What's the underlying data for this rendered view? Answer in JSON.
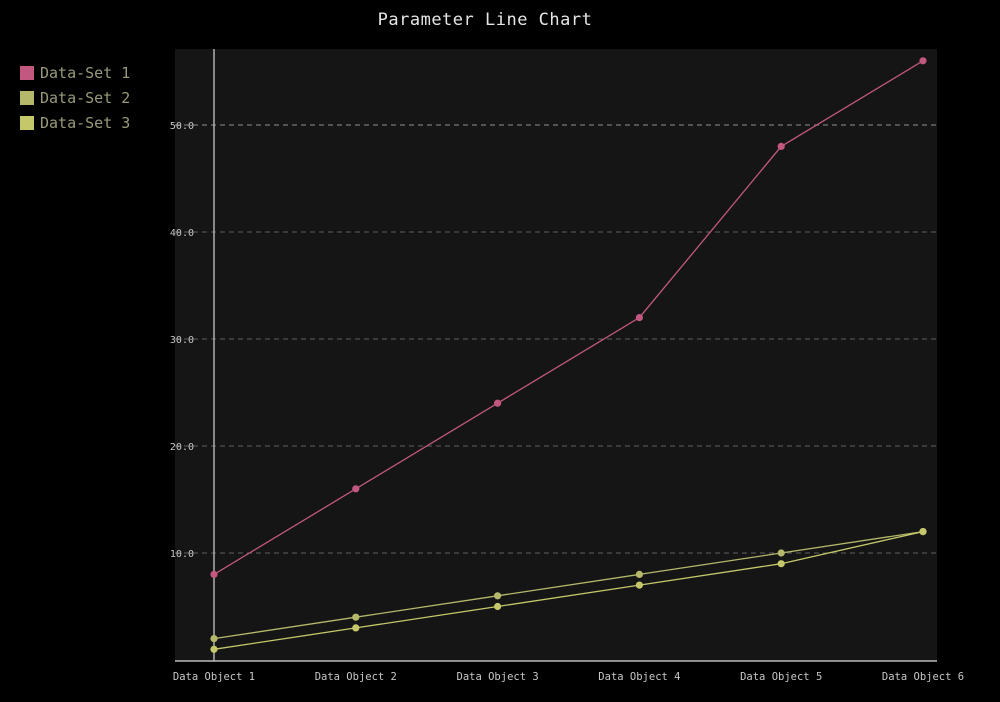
{
  "chart_data": {
    "type": "line",
    "title": "Parameter Line Chart",
    "xlabel": "",
    "ylabel": "",
    "categories": [
      "Data Object 1",
      "Data Object 2",
      "Data Object 3",
      "Data Object 4",
      "Data Object 5",
      "Data Object 6"
    ],
    "ylim": [
      0,
      57
    ],
    "yticks": [
      10,
      20,
      30,
      40,
      50
    ],
    "ytick_labels": [
      "10.0",
      "20.0",
      "30.0",
      "40.0",
      "50.0"
    ],
    "grid": "horizontal-dashed",
    "legend_position": "top-left",
    "series": [
      {
        "name": "Data-Set 1",
        "color": "#c2587f",
        "values": [
          8,
          16,
          24,
          32,
          48,
          56
        ]
      },
      {
        "name": "Data-Set 2",
        "color": "#b5b86a",
        "values": [
          2,
          4,
          6,
          8,
          10,
          12
        ]
      },
      {
        "name": "Data-Set 3",
        "color": "#c5c86a",
        "values": [
          1,
          3,
          5,
          7,
          9,
          12
        ]
      }
    ]
  },
  "colors": {
    "background": "#000000",
    "plot_background": "#151515",
    "grid": "#777777",
    "axis": "#bbbbbb",
    "tick_text": "#c8c8c8"
  }
}
